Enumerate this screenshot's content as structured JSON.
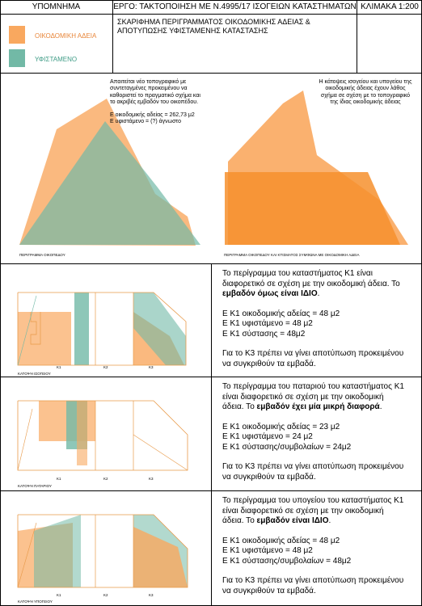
{
  "header": {
    "legend_title": "ΥΠΟΜΝΗΜΑ",
    "project_title": "ΕΡΓΟ: ΤΑΚΤΟΠΟΙΗΣΗ ΜΕ Ν.4995/17 ΙΣΟΓΕΙΩΝ ΚΑΤΑΣΤΗΜΑΤΩΝ",
    "scale": "ΚΛΙΜΑΚΑ 1:200"
  },
  "legend": {
    "items": [
      {
        "label": "ΟΙΚΟΔΟΜΙΚΗ ΑΔΕΙΑ",
        "color": "#f9a85f"
      },
      {
        "label": "ΥΦΙΣΤΑΜΕΝΟ",
        "color": "#72b9a6"
      }
    ]
  },
  "sheet_title": [
    "ΣΚΑΡΙΦΗΜΑ ΠΕΡΙΓΡΑΜΜΑΤΟΣ ΟΙΚΟΔΟΜΙΚΗΣ ΑΔΕΙΑΣ &",
    "ΑΠΟΤΥΠΩΣΗΣ ΥΦΙΣΤΑΜΕΝΗΣ ΚΑΤΑΣΤΑΣΗΣ"
  ],
  "plot": {
    "left_note": [
      "Απαιτείται νέο τοπογραφικό με",
      "συντεταγμένες προκειμένου να",
      "καθοριστεί το πραγματικό σχήμα και",
      "το ακριβές εμβαδόν του οικοπέδου."
    ],
    "area_permit": "Ε οικοδομικής αδείας = 262,73 μ2",
    "area_existing": "Ε υφιστάμενο = (?) άγνωστο",
    "left_caption": "ΠΕΡΙΓΡΑΜΜΑ ΟΙΚΟΠΕΔΟΥ",
    "right_note": [
      "Η κάτοψεις ισογείου και υπογείου της",
      "οικοδομικής άδειας έχουν λάθος",
      "σχήμα σε σχέση με το τοπογραφικό",
      "της ίδιας οικοδομικής άδειας"
    ],
    "right_caption": "ΠΕΡΙΓΡΑΜΜΑ ΟΙΚΟΠΕΔΟΥ ΚΑΙ ΚΤΙΣΜΑΤΟΣ ΣΥΜΦΩΝΑ ΜΕ ΟΙΚΟΔΟΜΙΚΗ ΑΔΕΙΑ"
  },
  "sections": [
    {
      "caption": "ΚΑΤΟΨΗ ΙΣΟΓΕΙΟΥ",
      "units": [
        "Κ1",
        "Κ2",
        "Κ3"
      ],
      "intro": [
        "Το περίγραμμα του καταστήματος Κ1 είναι",
        "διαφορετικό σε σχέση με την οικοδομική άδεια. Το"
      ],
      "intro_bold": "εμβαδόν όμως είναι ΙΔΙΟ",
      "intro_end": ".",
      "areas": [
        "Ε Κ1 οικοδομικής αδείας = 48 μ2",
        "Ε Κ1 υφιστάμενο = 48 μ2",
        "Ε Κ1 σύστασης = 48μ2"
      ],
      "outro": [
        "Για το Κ3 πρέπει να γίνει αποτύπωση προκειμένου",
        "να συγκριθούν τα εμβαδά."
      ]
    },
    {
      "caption": "ΚΑΤΟΨΗ ΠΑΤΑΡΙΟΥ",
      "units": [
        "Κ1",
        "Κ2",
        "Κ3"
      ],
      "intro": [
        "Το περίγραμμα του παταριού του καταστήματος Κ1",
        "είναι διαφορετικό σε σχέση με την οικοδομική",
        "άδεια. Το"
      ],
      "intro_bold": "εμβαδόν έχει μία μικρή διαφορά",
      "intro_end": ".",
      "areas": [
        "Ε Κ1 οικοδομικής αδείας = 23 μ2",
        "Ε Κ1 υφιστάμενο = 24 μ2",
        "Ε Κ1 σύστασης/συμβολαίων = 24μ2"
      ],
      "outro": [
        "Για το Κ3 πρέπει να γίνει αποτύπωση προκειμένου",
        "να συγκριθούν τα εμβαδά."
      ]
    },
    {
      "caption": "ΚΑΤΟΨΗ ΥΠΟΓΕΙΟΥ",
      "units": [
        "Κ1",
        "Κ2",
        "Κ3"
      ],
      "intro": [
        "Το περίγραμμα του υπογείου του καταστήματος Κ1",
        "είναι διαφορετικό σε σχέση με την οικοδομική",
        "άδεια. Το"
      ],
      "intro_bold": "εμβαδόν είναι ΙΔΙΟ",
      "intro_end": ".",
      "areas": [
        "Ε Κ1 οικοδομικής αδείας = 48 μ2",
        "Ε Κ1 υφιστάμενο = 48 μ2",
        "Ε Κ1 σύστασης/συμβολαίων = 48μ2"
      ],
      "outro": [
        "Για το Κ3 πρέπει να γίνει αποτύπωση προκειμένου",
        "να συγκριθούν τα εμβαδά."
      ]
    }
  ]
}
